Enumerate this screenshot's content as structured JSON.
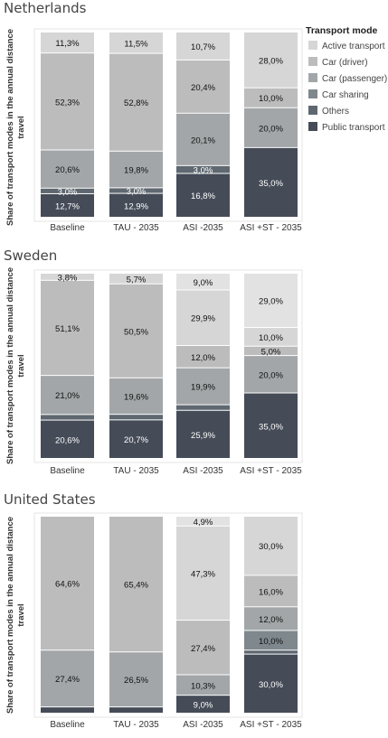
{
  "legend": {
    "title": "Transport mode",
    "items": [
      {
        "name": "Active transport",
        "color": "#d6d6d6"
      },
      {
        "name": "Car (driver)",
        "color": "#bcbcbc"
      },
      {
        "name": "Car (passenger)",
        "color": "#a2a6a8"
      },
      {
        "name": "Car sharing",
        "color": "#7e888d"
      },
      {
        "name": "Others",
        "color": "#5f6870"
      },
      {
        "name": "Public transport",
        "color": "#454b57"
      }
    ]
  },
  "chart_data": [
    {
      "type": "bar",
      "stacked": true,
      "title": "Netherlands",
      "ylabel": "Share of transport modes in the annual distance travel",
      "categories": [
        "Baseline",
        "TAU - 2035",
        "ASI -2035",
        "ASI +ST - 2035"
      ],
      "ylim": [
        0,
        100
      ],
      "series": [
        {
          "name": "Public transport",
          "values": [
            12.7,
            12.9,
            16.8,
            35.0
          ],
          "labels": [
            "12,7%",
            "12,9%",
            "16,8%",
            "35,0%"
          ]
        },
        {
          "name": "Others",
          "values": [
            3.0,
            3.0,
            3.0,
            0.0
          ],
          "labels": [
            "3,0%",
            "3,0%",
            "3,0%",
            ""
          ]
        },
        {
          "name": "Car sharing",
          "values": [
            0.0,
            0.0,
            0.0,
            0.0
          ],
          "labels": [
            "",
            "",
            "",
            ""
          ]
        },
        {
          "name": "Car (passenger)",
          "values": [
            20.6,
            19.8,
            20.1,
            20.0
          ],
          "labels": [
            "20,6%",
            "19,8%",
            "20,1%",
            "20,0%"
          ]
        },
        {
          "name": "Car (driver)",
          "values": [
            52.3,
            52.8,
            20.4,
            10.0
          ],
          "labels": [
            "52,3%",
            "52,8%",
            "20,4%",
            "10,0%"
          ]
        },
        {
          "name": "Active transport",
          "values": [
            11.3,
            11.5,
            10.7,
            28.0
          ],
          "labels": [
            "11,3%",
            "11,5%",
            "10,7%",
            "28,0%"
          ]
        }
      ]
    },
    {
      "type": "bar",
      "stacked": true,
      "title": "Sweden",
      "ylabel": "Share of transport modes in the annual distance travel",
      "categories": [
        "Baseline",
        "TAU - 2035",
        "ASI -2035",
        "ASI +ST - 2035"
      ],
      "ylim": [
        0,
        100
      ],
      "series": [
        {
          "name": "Public transport",
          "values": [
            20.6,
            20.7,
            25.9,
            35.0
          ],
          "labels": [
            "20,6%",
            "20,7%",
            "25,9%",
            "35,0%"
          ]
        },
        {
          "name": "Others",
          "values": [
            3.0,
            3.0,
            3.0,
            0.0
          ],
          "labels": [
            "",
            "",
            "",
            ""
          ]
        },
        {
          "name": "Car sharing",
          "values": [
            0.0,
            0.0,
            0.0,
            0.0
          ],
          "labels": [
            "",
            "",
            "",
            ""
          ]
        },
        {
          "name": "Car (passenger)",
          "values": [
            21.0,
            19.6,
            19.9,
            20.0
          ],
          "labels": [
            "21,0%",
            "19,6%",
            "19,9%",
            "20,0%"
          ]
        },
        {
          "name": "Car (driver)",
          "values": [
            51.1,
            50.5,
            12.0,
            5.0
          ],
          "labels": [
            "51,1%",
            "50,5%",
            "12,0%",
            "5,0%"
          ]
        },
        {
          "name": "Active transport",
          "values": [
            3.8,
            5.7,
            29.9,
            10.0
          ],
          "labels": [
            "3,8%",
            "5,7%",
            "29,9%",
            "10,0%"
          ]
        },
        {
          "name": "",
          "values": [
            0.0,
            0.0,
            9.0,
            29.0
          ],
          "labels": [
            "",
            "",
            "9,0%",
            "29,0%"
          ]
        }
      ]
    },
    {
      "type": "bar",
      "stacked": true,
      "title": "United States",
      "ylabel": "Share of transport modes in the annual distance travel",
      "categories": [
        "Baseline",
        "TAU - 2035",
        "ASI -2035",
        "ASI +ST - 2035"
      ],
      "ylim": [
        0,
        100
      ],
      "series": [
        {
          "name": "Public transport",
          "values": [
            3.0,
            3.0,
            9.0,
            30.0
          ],
          "labels": [
            "",
            "",
            "9,0%",
            "30,0%"
          ]
        },
        {
          "name": "Others",
          "values": [
            0.0,
            0.0,
            0.0,
            2.0
          ],
          "labels": [
            "",
            "",
            "",
            ""
          ]
        },
        {
          "name": "Car sharing",
          "values": [
            0.0,
            0.0,
            0.0,
            10.0
          ],
          "labels": [
            "",
            "",
            "",
            "10,0%"
          ]
        },
        {
          "name": "Car (passenger)",
          "values": [
            27.4,
            26.5,
            10.3,
            12.0
          ],
          "labels": [
            "27,4%",
            "26,5%",
            "10,3%",
            "12,0%"
          ]
        },
        {
          "name": "Car (driver)",
          "values": [
            64.6,
            65.4,
            27.4,
            16.0
          ],
          "labels": [
            "64,6%",
            "65,4%",
            "27,4%",
            "16,0%"
          ]
        },
        {
          "name": "Active transport",
          "values": [
            0.0,
            0.0,
            47.3,
            30.0
          ],
          "labels": [
            "",
            "",
            "47,3%",
            "30,0%"
          ]
        },
        {
          "name": "",
          "values": [
            0.0,
            0.0,
            4.9,
            0.0
          ],
          "labels": [
            "",
            "",
            "4,9%",
            ""
          ]
        }
      ]
    }
  ]
}
